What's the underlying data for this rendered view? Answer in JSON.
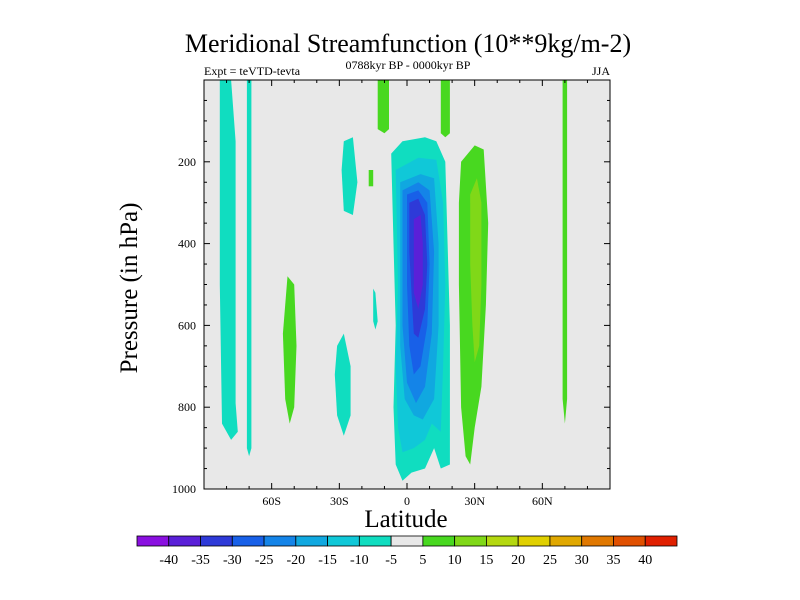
{
  "chart_data": {
    "type": "heatmap",
    "title": "Meridional Streamfunction (10**9kg/m-2)",
    "left_label": "Expt = teVTD-tevta",
    "center_label": "0788kyr BP - 0000kyr BP",
    "right_label": "JJA",
    "xlabel": "Latitude",
    "ylabel": "Pressure (in hPa)",
    "x_ticks": [
      "60S",
      "30S",
      "0",
      "30N",
      "60N"
    ],
    "x_tick_values": [
      -60,
      -30,
      0,
      30,
      60
    ],
    "xlim": [
      -90,
      90
    ],
    "y_ticks": [
      "200",
      "400",
      "600",
      "800",
      "1000"
    ],
    "y_tick_values": [
      200,
      400,
      600,
      800,
      1000
    ],
    "ylim": [
      1000,
      0
    ],
    "y_inverted": true,
    "background_color": "#e8e8e8",
    "colorbar": {
      "labels": [
        "-40",
        "-35",
        "-30",
        "-25",
        "-20",
        "-15",
        "-10",
        "-5",
        "5",
        "10",
        "15",
        "20",
        "25",
        "30",
        "35",
        "40"
      ],
      "colors": [
        "#8a10e0",
        "#5a20d8",
        "#2e3ad8",
        "#1860e8",
        "#1484e8",
        "#10a8e0",
        "#10c8d8",
        "#10ddc0",
        "#e8e8e8",
        "#48d820",
        "#80d818",
        "#b4d810",
        "#e0d000",
        "#e0a800",
        "#e07800",
        "#e05000",
        "#e02000"
      ]
    },
    "regions": [
      {
        "level": "-5",
        "color": "#10ddc0",
        "poly": [
          [
            -83,
            0
          ],
          [
            -78,
            0
          ],
          [
            -76,
            150
          ],
          [
            -76,
            790
          ],
          [
            -75,
            860
          ],
          [
            -78,
            880
          ],
          [
            -82,
            840
          ],
          [
            -83,
            500
          ]
        ]
      },
      {
        "level": "-5",
        "color": "#10ddc0",
        "poly": [
          [
            -71,
            0
          ],
          [
            -69,
            0
          ],
          [
            -69,
            900
          ],
          [
            -70,
            920
          ],
          [
            -71,
            900
          ]
        ]
      },
      {
        "level": "-5",
        "color": "#10ddc0",
        "poly": [
          [
            -28,
            150
          ],
          [
            -24,
            140
          ],
          [
            -22,
            250
          ],
          [
            -24,
            330
          ],
          [
            -28,
            320
          ],
          [
            -29,
            220
          ]
        ]
      },
      {
        "level": "-5",
        "color": "#10ddc0",
        "poly": [
          [
            -31,
            650
          ],
          [
            -28,
            620
          ],
          [
            -25,
            700
          ],
          [
            -25,
            820
          ],
          [
            -28,
            870
          ],
          [
            -31,
            820
          ],
          [
            -32,
            720
          ]
        ]
      },
      {
        "level": "-5",
        "color": "#10ddc0",
        "poly": [
          [
            -7,
            180
          ],
          [
            -2,
            150
          ],
          [
            8,
            140
          ],
          [
            13,
            150
          ],
          [
            17,
            200
          ],
          [
            18,
            400
          ],
          [
            19,
            600
          ],
          [
            19,
            800
          ],
          [
            19,
            940
          ],
          [
            15,
            950
          ],
          [
            12,
            900
          ],
          [
            8,
            950
          ],
          [
            2,
            960
          ],
          [
            -2,
            980
          ],
          [
            -5,
            940
          ],
          [
            -6,
            800
          ],
          [
            -5,
            600
          ],
          [
            -6,
            400
          ]
        ]
      },
      {
        "level": "-10",
        "color": "#10c8d8",
        "poly": [
          [
            -5,
            220
          ],
          [
            5,
            190
          ],
          [
            13,
            195
          ],
          [
            16,
            300
          ],
          [
            17,
            500
          ],
          [
            16,
            700
          ],
          [
            15,
            860
          ],
          [
            11,
            840
          ],
          [
            8,
            880
          ],
          [
            3,
            900
          ],
          [
            -2,
            910
          ],
          [
            -4,
            850
          ],
          [
            -5,
            700
          ],
          [
            -4,
            500
          ]
        ]
      },
      {
        "level": "-15",
        "color": "#10a8e0",
        "poly": [
          [
            -3,
            250
          ],
          [
            6,
            230
          ],
          [
            12,
            240
          ],
          [
            14,
            400
          ],
          [
            14,
            600
          ],
          [
            12,
            780
          ],
          [
            7,
            830
          ],
          [
            3,
            820
          ],
          [
            -1,
            780
          ],
          [
            -3,
            650
          ],
          [
            -3,
            450
          ]
        ]
      },
      {
        "level": "-20",
        "color": "#1484e8",
        "poly": [
          [
            -2,
            270
          ],
          [
            5,
            250
          ],
          [
            10,
            270
          ],
          [
            12,
            420
          ],
          [
            11,
            620
          ],
          [
            8,
            750
          ],
          [
            4,
            790
          ],
          [
            0,
            740
          ],
          [
            -2,
            600
          ],
          [
            -2,
            420
          ]
        ]
      },
      {
        "level": "-25",
        "color": "#1860e8",
        "poly": [
          [
            0,
            280
          ],
          [
            5,
            270
          ],
          [
            9,
            300
          ],
          [
            10,
            450
          ],
          [
            9,
            600
          ],
          [
            6,
            700
          ],
          [
            3,
            720
          ],
          [
            1,
            650
          ],
          [
            0,
            500
          ]
        ]
      },
      {
        "level": "-30",
        "color": "#2e3ad8",
        "poly": [
          [
            1,
            300
          ],
          [
            5,
            290
          ],
          [
            8,
            330
          ],
          [
            9,
            450
          ],
          [
            8,
            560
          ],
          [
            5,
            630
          ],
          [
            3,
            620
          ],
          [
            2,
            520
          ],
          [
            1,
            420
          ]
        ]
      },
      {
        "level": "-35",
        "color": "#5a20d8",
        "poly": [
          [
            3,
            340
          ],
          [
            6,
            330
          ],
          [
            7,
            400
          ],
          [
            7,
            500
          ],
          [
            5,
            560
          ],
          [
            3,
            520
          ],
          [
            3,
            420
          ]
        ]
      },
      {
        "level": "-5",
        "color": "#10ddc0",
        "poly": [
          [
            -15,
            510
          ],
          [
            -14,
            520
          ],
          [
            -13,
            590
          ],
          [
            -14,
            610
          ],
          [
            -15,
            590
          ]
        ]
      },
      {
        "level": "5",
        "color": "#48d820",
        "poly": [
          [
            -13,
            0
          ],
          [
            -8,
            0
          ],
          [
            -8,
            120
          ],
          [
            -10,
            130
          ],
          [
            -13,
            120
          ]
        ]
      },
      {
        "level": "5",
        "color": "#48d820",
        "poly": [
          [
            -17,
            220
          ],
          [
            -15,
            220
          ],
          [
            -15,
            260
          ],
          [
            -17,
            260
          ]
        ]
      },
      {
        "level": "5",
        "color": "#48d820",
        "poly": [
          [
            15,
            0
          ],
          [
            19,
            0
          ],
          [
            19,
            130
          ],
          [
            17,
            140
          ],
          [
            15,
            130
          ]
        ]
      },
      {
        "level": "5",
        "color": "#48d820",
        "poly": [
          [
            -53,
            480
          ],
          [
            -50,
            500
          ],
          [
            -49,
            650
          ],
          [
            -50,
            800
          ],
          [
            -52,
            840
          ],
          [
            -54,
            780
          ],
          [
            -55,
            620
          ]
        ]
      },
      {
        "level": "5",
        "color": "#48d820",
        "poly": [
          [
            24,
            200
          ],
          [
            30,
            160
          ],
          [
            34,
            170
          ],
          [
            36,
            350
          ],
          [
            35,
            550
          ],
          [
            33,
            750
          ],
          [
            30,
            850
          ],
          [
            28,
            940
          ],
          [
            26,
            920
          ],
          [
            24,
            800
          ],
          [
            23,
            500
          ],
          [
            23,
            300
          ]
        ]
      },
      {
        "level": "10",
        "color": "#80d818",
        "poly": [
          [
            28,
            280
          ],
          [
            31,
            240
          ],
          [
            33,
            300
          ],
          [
            33,
            500
          ],
          [
            32,
            650
          ],
          [
            30,
            690
          ],
          [
            29,
            600
          ],
          [
            28,
            450
          ]
        ]
      },
      {
        "level": "5",
        "color": "#48d820",
        "poly": [
          [
            69,
            0
          ],
          [
            71,
            0
          ],
          [
            71,
            780
          ],
          [
            70,
            840
          ],
          [
            69,
            780
          ]
        ]
      }
    ]
  }
}
